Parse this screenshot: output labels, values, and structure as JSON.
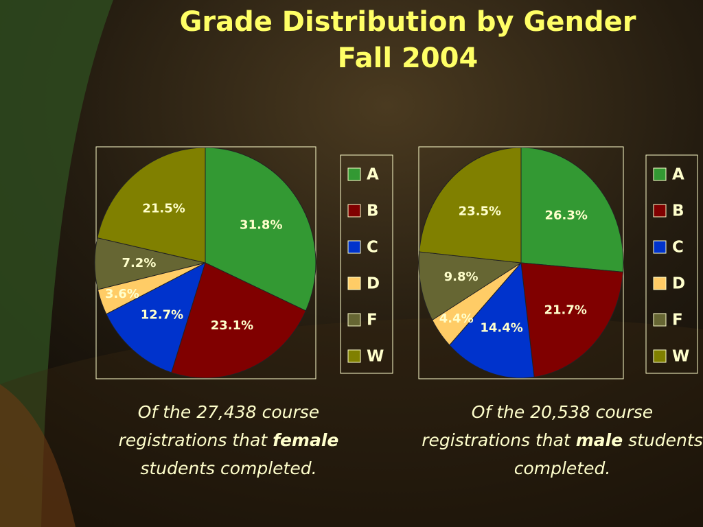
{
  "title_lines": [
    "Grade Distribution by Gender",
    "Fall 2004"
  ],
  "chart_data": [
    {
      "type": "pie",
      "categories": [
        "A",
        "B",
        "C",
        "D",
        "F",
        "W"
      ],
      "values": [
        31.8,
        23.1,
        12.7,
        3.6,
        7.2,
        21.5
      ],
      "value_labels": [
        "31.8%",
        "23.1%",
        "12.7%",
        "3.6%",
        "7.2%",
        "21.5%"
      ],
      "colors": [
        "#339933",
        "#800000",
        "#0033cc",
        "#ffcc66",
        "#666633",
        "#808000"
      ],
      "caption": [
        "Of the 27,438 course registrations that ",
        "female",
        " students completed."
      ]
    },
    {
      "type": "pie",
      "categories": [
        "A",
        "B",
        "C",
        "D",
        "F",
        "W"
      ],
      "values": [
        26.3,
        21.7,
        14.4,
        4.4,
        9.8,
        23.5
      ],
      "value_labels": [
        "26.3%",
        "21.7%",
        "14.4%",
        "4.4%",
        "9.8%",
        "23.5%"
      ],
      "colors": [
        "#339933",
        "#800000",
        "#0033cc",
        "#ffcc66",
        "#666633",
        "#808000"
      ],
      "caption": [
        "Of the 20,538 course registrations that ",
        "male",
        " students completed."
      ]
    }
  ]
}
